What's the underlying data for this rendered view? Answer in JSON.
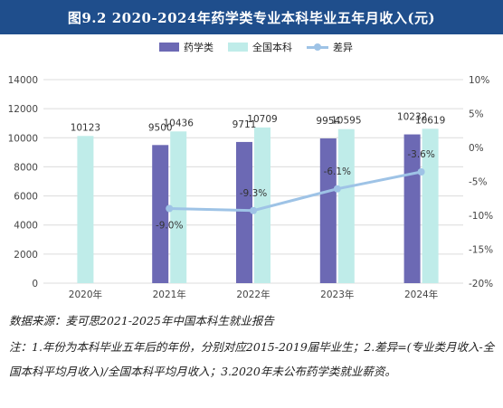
{
  "title": "图9.2  2020-2024年药学类专业本科毕业五年月收入(元)",
  "source": "数据来源：麦可思2021-2025年中国本科生就业报告",
  "notes": "注：1.年份为本科毕业五年后的年份，分别对应2015-2019届毕业生；2.差异=(专业类月收入-全国本科平均月收入)/全国本科平均月收入；3.2020年未公布药学类就业薪资。",
  "colors": {
    "pharmacy": "#6c69b4",
    "national": "#bfece9",
    "diff": "#9ec3e6",
    "title_bg": "#1f4e8c"
  },
  "chart_data": {
    "type": "bar",
    "categories": [
      "2020年",
      "2021年",
      "2022年",
      "2023年",
      "2024年"
    ],
    "series": [
      {
        "name": "药学类",
        "type": "bar",
        "axis": "left",
        "values": [
          null,
          9500,
          9711,
          9954,
          10232
        ]
      },
      {
        "name": "全国本科",
        "type": "bar",
        "axis": "left",
        "values": [
          10123,
          10436,
          10709,
          10595,
          10619
        ]
      },
      {
        "name": "差异",
        "type": "line",
        "axis": "right",
        "values": [
          null,
          -9.0,
          -9.3,
          -6.1,
          -3.6
        ],
        "labels": [
          null,
          "-9.0%",
          "-9.3%",
          "-6.1%",
          "-3.6%"
        ]
      }
    ],
    "y_left": {
      "min": 0,
      "max": 14000,
      "ticks": [
        0,
        2000,
        4000,
        6000,
        8000,
        10000,
        12000,
        14000
      ]
    },
    "y_right": {
      "min": -20,
      "max": 10,
      "ticks": [
        "10%",
        "5%",
        "0%",
        "-5%",
        "-10%",
        "-15%",
        "-20%"
      ]
    },
    "grid": true,
    "legend": "top"
  }
}
